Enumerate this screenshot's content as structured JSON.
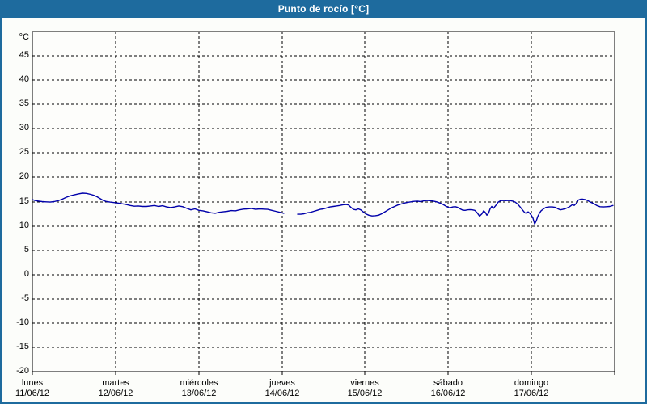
{
  "window": {
    "title": "Punto de rocío [°C]"
  },
  "colors": {
    "frame": "#1e6b9e",
    "title_text": "#ffffff",
    "panel_bg": "#fcfdfa",
    "plot_bg": "#fdfdfb",
    "axis": "#000000",
    "grid": "#000000",
    "label": "#000000",
    "line": "#0000aa"
  },
  "chart_data": {
    "type": "line",
    "title": "Punto de rocío [°C]",
    "y_unit": "°C",
    "xlabel": "",
    "ylabel": "°C",
    "grid": "dashed",
    "legend": "none",
    "ylim": [
      -20,
      50
    ],
    "y_ticks": [
      45,
      40,
      35,
      30,
      25,
      20,
      15,
      10,
      5,
      0,
      -5,
      -10,
      -15,
      -20
    ],
    "xlim_days": [
      0,
      7
    ],
    "x_days": [
      {
        "name": "lunes",
        "date": "11/06/12"
      },
      {
        "name": "martes",
        "date": "12/06/12"
      },
      {
        "name": "miércoles",
        "date": "13/06/12"
      },
      {
        "name": "jueves",
        "date": "14/06/12"
      },
      {
        "name": "viernes",
        "date": "15/06/12"
      },
      {
        "name": "sábado",
        "date": "16/06/12"
      },
      {
        "name": "domingo",
        "date": "17/06/12"
      }
    ],
    "series": [
      {
        "name": "Punto de rocío",
        "color": "#0000aa",
        "points_day_degC": [
          [
            0.0,
            15.4
          ],
          [
            0.039,
            15.2
          ],
          [
            0.078,
            15.1
          ],
          [
            0.117,
            15.0
          ],
          [
            0.165,
            14.95
          ],
          [
            0.214,
            14.9
          ],
          [
            0.262,
            15.0
          ],
          [
            0.311,
            15.2
          ],
          [
            0.36,
            15.5
          ],
          [
            0.408,
            15.9
          ],
          [
            0.457,
            16.2
          ],
          [
            0.506,
            16.4
          ],
          [
            0.554,
            16.6
          ],
          [
            0.603,
            16.75
          ],
          [
            0.651,
            16.7
          ],
          [
            0.7,
            16.5
          ],
          [
            0.739,
            16.3
          ],
          [
            0.778,
            16.0
          ],
          [
            0.817,
            15.6
          ],
          [
            0.856,
            15.2
          ],
          [
            0.894,
            15.0
          ],
          [
            0.933,
            14.9
          ],
          [
            0.982,
            14.8
          ],
          [
            1.031,
            14.7
          ],
          [
            1.079,
            14.55
          ],
          [
            1.128,
            14.4
          ],
          [
            1.176,
            14.2
          ],
          [
            1.225,
            14.05
          ],
          [
            1.274,
            14.1
          ],
          [
            1.322,
            14.0
          ],
          [
            1.371,
            14.0
          ],
          [
            1.42,
            14.1
          ],
          [
            1.468,
            14.2
          ],
          [
            1.517,
            14.0
          ],
          [
            1.565,
            14.15
          ],
          [
            1.614,
            13.9
          ],
          [
            1.663,
            13.75
          ],
          [
            1.711,
            13.9
          ],
          [
            1.76,
            14.1
          ],
          [
            1.808,
            13.95
          ],
          [
            1.857,
            13.6
          ],
          [
            1.906,
            13.3
          ],
          [
            1.954,
            13.5
          ],
          [
            2.003,
            13.2
          ],
          [
            2.051,
            13.1
          ],
          [
            2.1,
            12.9
          ],
          [
            2.149,
            12.7
          ],
          [
            2.197,
            12.6
          ],
          [
            2.246,
            12.8
          ],
          [
            2.294,
            12.9
          ],
          [
            2.343,
            13.0
          ],
          [
            2.392,
            13.15
          ],
          [
            2.44,
            13.1
          ],
          [
            2.489,
            13.3
          ],
          [
            2.537,
            13.45
          ],
          [
            2.586,
            13.5
          ],
          [
            2.635,
            13.6
          ],
          [
            2.683,
            13.4
          ],
          [
            2.732,
            13.5
          ],
          [
            2.78,
            13.45
          ],
          [
            2.829,
            13.4
          ],
          [
            2.878,
            13.2
          ],
          [
            2.926,
            13.0
          ],
          [
            2.975,
            12.8
          ],
          [
            3.023,
            12.6
          ],
          null,
          [
            3.189,
            12.4
          ],
          [
            3.228,
            12.4
          ],
          [
            3.267,
            12.5
          ],
          [
            3.306,
            12.7
          ],
          [
            3.345,
            12.8
          ],
          [
            3.383,
            13.0
          ],
          [
            3.422,
            13.2
          ],
          [
            3.461,
            13.4
          ],
          [
            3.5,
            13.5
          ],
          [
            3.539,
            13.7
          ],
          [
            3.578,
            13.9
          ],
          [
            3.617,
            14.0
          ],
          [
            3.656,
            14.1
          ],
          [
            3.694,
            14.2
          ],
          [
            3.733,
            14.35
          ],
          [
            3.772,
            14.4
          ],
          [
            3.801,
            14.3
          ],
          [
            3.831,
            13.8
          ],
          [
            3.86,
            13.4
          ],
          [
            3.889,
            13.3
          ],
          [
            3.918,
            13.5
          ],
          [
            3.947,
            13.3
          ],
          [
            3.976,
            12.9
          ],
          [
            4.006,
            12.5
          ],
          [
            4.045,
            12.2
          ],
          [
            4.083,
            12.05
          ],
          [
            4.122,
            12.1
          ],
          [
            4.161,
            12.2
          ],
          [
            4.2,
            12.5
          ],
          [
            4.239,
            12.9
          ],
          [
            4.278,
            13.3
          ],
          [
            4.317,
            13.7
          ],
          [
            4.356,
            14.0
          ],
          [
            4.394,
            14.3
          ],
          [
            4.433,
            14.5
          ],
          [
            4.472,
            14.7
          ],
          [
            4.511,
            14.85
          ],
          [
            4.55,
            14.95
          ],
          [
            4.589,
            15.05
          ],
          [
            4.628,
            15.1
          ],
          [
            4.667,
            15.0
          ],
          [
            4.706,
            15.15
          ],
          [
            4.744,
            15.25
          ],
          [
            4.783,
            15.2
          ],
          [
            4.822,
            15.1
          ],
          [
            4.861,
            14.95
          ],
          [
            4.9,
            14.7
          ],
          [
            4.939,
            14.4
          ],
          [
            4.978,
            14.0
          ],
          [
            5.017,
            13.7
          ],
          [
            5.056,
            13.9
          ],
          [
            5.085,
            13.95
          ],
          [
            5.114,
            13.8
          ],
          [
            5.143,
            13.5
          ],
          [
            5.172,
            13.25
          ],
          [
            5.201,
            13.2
          ],
          [
            5.231,
            13.3
          ],
          [
            5.26,
            13.35
          ],
          [
            5.289,
            13.3
          ],
          [
            5.318,
            13.2
          ],
          [
            5.347,
            12.7
          ],
          [
            5.376,
            12.0
          ],
          [
            5.406,
            12.5
          ],
          [
            5.425,
            13.1
          ],
          [
            5.444,
            12.8
          ],
          [
            5.464,
            12.2
          ],
          [
            5.483,
            12.6
          ],
          [
            5.503,
            13.5
          ],
          [
            5.522,
            14.0
          ],
          [
            5.542,
            13.6
          ],
          [
            5.571,
            14.2
          ],
          [
            5.6,
            14.9
          ],
          [
            5.629,
            15.2
          ],
          [
            5.658,
            15.25
          ],
          [
            5.688,
            15.2
          ],
          [
            5.717,
            15.25
          ],
          [
            5.746,
            15.2
          ],
          [
            5.775,
            15.1
          ],
          [
            5.804,
            14.9
          ],
          [
            5.833,
            14.5
          ],
          [
            5.863,
            13.9
          ],
          [
            5.892,
            13.3
          ],
          [
            5.921,
            12.7
          ],
          [
            5.94,
            12.6
          ],
          [
            5.96,
            12.9
          ],
          [
            5.979,
            12.6
          ],
          [
            5.999,
            12.2
          ],
          [
            6.018,
            11.6
          ],
          [
            6.038,
            10.4
          ],
          [
            6.057,
            11.0
          ],
          [
            6.077,
            12.0
          ],
          [
            6.096,
            12.6
          ],
          [
            6.115,
            13.1
          ],
          [
            6.144,
            13.5
          ],
          [
            6.174,
            13.8
          ],
          [
            6.212,
            13.9
          ],
          [
            6.251,
            13.9
          ],
          [
            6.29,
            13.8
          ],
          [
            6.319,
            13.5
          ],
          [
            6.348,
            13.3
          ],
          [
            6.377,
            13.4
          ],
          [
            6.416,
            13.6
          ],
          [
            6.455,
            13.9
          ],
          [
            6.494,
            14.4
          ],
          [
            6.514,
            14.2
          ],
          [
            6.543,
            14.7
          ],
          [
            6.562,
            15.3
          ],
          [
            6.591,
            15.5
          ],
          [
            6.62,
            15.5
          ],
          [
            6.649,
            15.4
          ],
          [
            6.678,
            15.2
          ],
          [
            6.707,
            14.9
          ],
          [
            6.746,
            14.6
          ],
          [
            6.785,
            14.2
          ],
          [
            6.824,
            13.95
          ],
          [
            6.863,
            13.9
          ],
          [
            6.902,
            13.95
          ],
          [
            6.941,
            14.0
          ],
          [
            6.98,
            14.2
          ]
        ]
      }
    ]
  }
}
